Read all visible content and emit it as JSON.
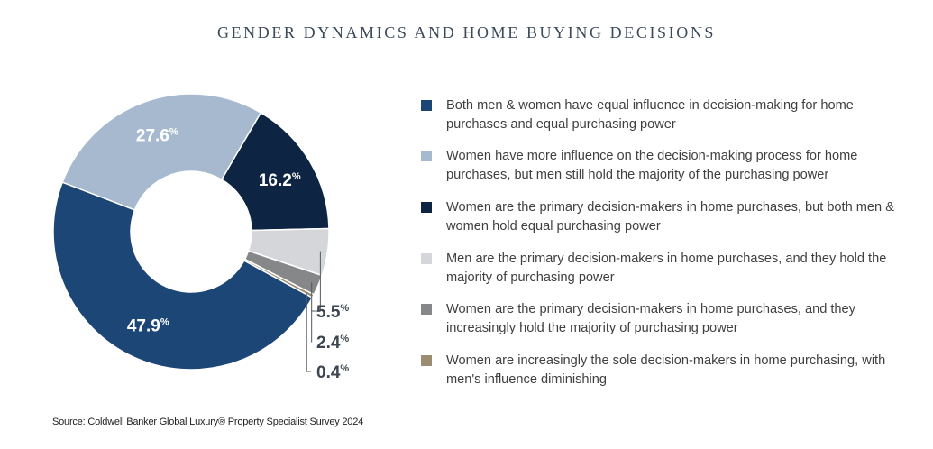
{
  "title": "GENDER DYNAMICS AND HOME BUYING DECISIONS",
  "source": "Source: Coldwell Banker Global Luxury® Property Specialist Survey 2024",
  "chart_data": {
    "type": "pie",
    "title": "GENDER DYNAMICS AND HOME BUYING DECISIONS",
    "donut": true,
    "legend_position": "right",
    "slices": [
      {
        "label": "Both men & women have equal influence in decision-making for home purchases and equal purchasing power",
        "value": 47.9,
        "display": "47.9",
        "color": "#1c4676"
      },
      {
        "label": "Women have more influence on the decision-making process for home purchases, but men still hold the majority of the purchasing power",
        "value": 27.6,
        "display": "27.6",
        "color": "#a6b9cf"
      },
      {
        "label": "Women are the primary decision-makers in home purchases, but both men & women hold equal purchasing power",
        "value": 16.2,
        "display": "16.2",
        "color": "#0e2443"
      },
      {
        "label": "Men are the primary decision-makers in home purchases, and they hold the majority of purchasing power",
        "value": 5.5,
        "display": "5.5",
        "color": "#d4d6d9"
      },
      {
        "label": "Women are the primary decision-makers in home purchases, and they increasingly hold the majority of purchasing power",
        "value": 2.4,
        "display": "2.4",
        "color": "#858789"
      },
      {
        "label": "Women are increasingly the sole decision-makers in home purchasing, with men's influence diminishing",
        "value": 0.4,
        "display": "0.4",
        "color": "#9c8c72"
      }
    ],
    "pct_symbol": "%"
  }
}
